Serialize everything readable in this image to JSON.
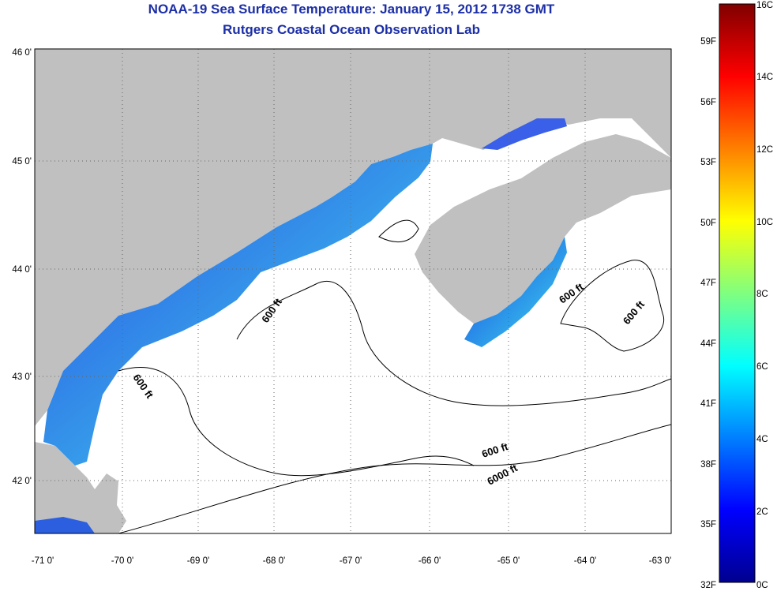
{
  "title_line1": "NOAA-19 Sea Surface Temperature:  January 15, 2012 1738 GMT",
  "title_line2": "Rutgers Coastal Ocean Observation Lab",
  "lon_ticks": [
    "-71 0'",
    "-70 0'",
    "-69 0'",
    "-68 0'",
    "-67 0'",
    "-66 0'",
    "-65 0'",
    "-64 0'",
    "-63 0'"
  ],
  "lat_ticks": [
    "46 0'",
    "45 0'",
    "44 0'",
    "43 0'",
    "42 0'"
  ],
  "contour_labels": [
    "600 ft",
    "600 ft",
    "600 ft",
    "600 ft",
    "600 ft",
    "6000 ft"
  ],
  "colorbar": {
    "celsius": [
      "16C",
      "14C",
      "12C",
      "10C",
      "8C",
      "6C",
      "4C",
      "2C",
      "0C"
    ],
    "fahrenheit": [
      "59F",
      "56F",
      "53F",
      "50F",
      "47F",
      "44F",
      "41F",
      "38F",
      "35F",
      "32F"
    ]
  },
  "colors": {
    "land": "#c0c0c0",
    "title": "#1c2fa6",
    "ocean": "#ffffff"
  }
}
